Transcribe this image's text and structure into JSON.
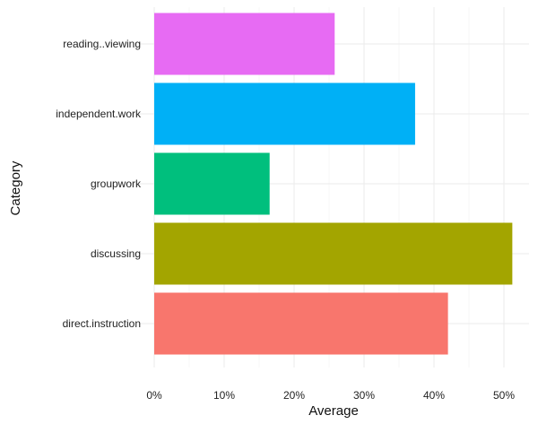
{
  "chart_data": {
    "type": "bar",
    "orientation": "horizontal",
    "categories": [
      "direct.instruction",
      "discussing",
      "groupwork",
      "independent.work",
      "reading..viewing"
    ],
    "values": [
      0.42,
      0.512,
      0.165,
      0.373,
      0.258
    ],
    "colors": [
      "#F8766D",
      "#A3A500",
      "#00BF7D",
      "#00B0F6",
      "#E76BF3"
    ],
    "xlabel": "Average",
    "ylabel": "Category",
    "xlim": [
      0,
      0.52
    ],
    "xticks": [
      0,
      0.1,
      0.2,
      0.3,
      0.4,
      0.5
    ],
    "xtick_labels": [
      "0%",
      "10%",
      "20%",
      "30%",
      "40%",
      "50%"
    ],
    "grid": true,
    "legend": "none"
  }
}
